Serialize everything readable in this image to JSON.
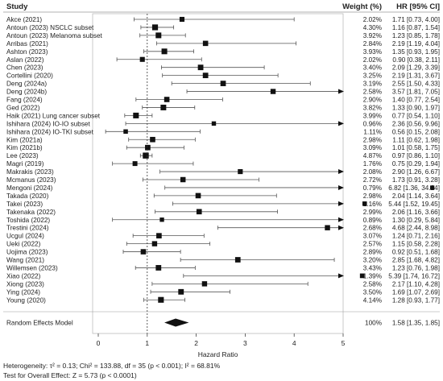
{
  "chart_data": {
    "type": "forest",
    "headers": {
      "study": "Study",
      "weight": "Weight (%)",
      "hr": "HR [95% CI]"
    },
    "studies": [
      {
        "name": "Akce (2021)",
        "weight": "2.02%",
        "hr_text": "1.71 [0.73, 4.00]",
        "hr": 1.71,
        "lo": 0.73,
        "hi": 4.0
      },
      {
        "name": "Antoun (2023) NSCLC subset",
        "weight": "4.30%",
        "hr_text": "1.16 [0.87, 1.54]",
        "hr": 1.16,
        "lo": 0.87,
        "hi": 1.54
      },
      {
        "name": "Antoun (2023) Melanoma subset",
        "weight": "3.92%",
        "hr_text": "1.23 [0.85, 1.78]",
        "hr": 1.23,
        "lo": 0.85,
        "hi": 1.78
      },
      {
        "name": "Arribas (2021)",
        "weight": "2.84%",
        "hr_text": "2.19 [1.19, 4.04]",
        "hr": 2.19,
        "lo": 1.19,
        "hi": 4.04
      },
      {
        "name": "Ashton (2023)",
        "weight": "3.93%",
        "hr_text": "1.35 [0.93, 1.95]",
        "hr": 1.35,
        "lo": 0.93,
        "hi": 1.95
      },
      {
        "name": "Aslan (2022)",
        "weight": "2.02%",
        "hr_text": "0.90 [0.38, 2.11]",
        "hr": 0.9,
        "lo": 0.38,
        "hi": 2.11
      },
      {
        "name": "Chen (2023)",
        "weight": "3.40%",
        "hr_text": "2.09 [1.29, 3.39]",
        "hr": 2.09,
        "lo": 1.29,
        "hi": 3.39
      },
      {
        "name": "Cortellini (2020)",
        "weight": "3.25%",
        "hr_text": "2.19 [1.31, 3.67]",
        "hr": 2.19,
        "lo": 1.31,
        "hi": 3.67
      },
      {
        "name": "Deng (2024a)",
        "weight": "3.19%",
        "hr_text": "2.55 [1.50, 4.33]",
        "hr": 2.55,
        "lo": 1.5,
        "hi": 4.33
      },
      {
        "name": "Deng (2024b)",
        "weight": "2.58%",
        "hr_text": "3.57 [1.81, 7.05]",
        "hr": 3.57,
        "lo": 1.81,
        "hi": 7.05
      },
      {
        "name": "Fang (2024)",
        "weight": "2.90%",
        "hr_text": "1.40 [0.77, 2.54]",
        "hr": 1.4,
        "lo": 0.77,
        "hi": 2.54
      },
      {
        "name": "Ged (2022)",
        "weight": "3.82%",
        "hr_text": "1.33 [0.90, 1.97]",
        "hr": 1.33,
        "lo": 0.9,
        "hi": 1.97
      },
      {
        "name": "Haik (2021) Lung cancer subset",
        "weight": "3.99%",
        "hr_text": "0.77 [0.54, 1.10]",
        "hr": 0.77,
        "lo": 0.54,
        "hi": 1.1
      },
      {
        "name": "Ishihara (2024) IO-IO subset",
        "weight": "0.96%",
        "hr_text": "2.36 [0.56, 9.96]",
        "hr": 2.36,
        "lo": 0.56,
        "hi": 9.96
      },
      {
        "name": "Ishihara (2024) IO-TKI subset",
        "weight": "1.11%",
        "hr_text": "0.56 [0.15, 2.08]",
        "hr": 0.56,
        "lo": 0.15,
        "hi": 2.08
      },
      {
        "name": "Kim (2021a)",
        "weight": "2.98%",
        "hr_text": "1.11 [0.62, 1.98]",
        "hr": 1.11,
        "lo": 0.62,
        "hi": 1.98
      },
      {
        "name": "Kim (2021b)",
        "weight": "3.09%",
        "hr_text": "1.01 [0.58, 1.75]",
        "hr": 1.01,
        "lo": 0.58,
        "hi": 1.75
      },
      {
        "name": "Lee (2023)",
        "weight": "4.87%",
        "hr_text": "0.97 [0.86, 1.10]",
        "hr": 0.97,
        "lo": 0.86,
        "hi": 1.1
      },
      {
        "name": "Magri (2019)",
        "weight": "1.76%",
        "hr_text": "0.75 [0.29, 1.94]",
        "hr": 0.75,
        "lo": 0.29,
        "hi": 1.94
      },
      {
        "name": "Makrakis (2023)",
        "weight": "2.08%",
        "hr_text": "2.90 [1.26, 6.67]",
        "hr": 2.9,
        "lo": 1.26,
        "hi": 6.67
      },
      {
        "name": "Mcmanus (2023)",
        "weight": "2.72%",
        "hr_text": "1.73 [0.91, 3.28]",
        "hr": 1.73,
        "lo": 0.91,
        "hi": 3.28
      },
      {
        "name": "Mengoni (2024)",
        "weight": "0.79%",
        "hr_text": "6.82 [1.36, 34.24]",
        "hr": 6.82,
        "lo": 1.36,
        "hi": 34.24
      },
      {
        "name": "Takada (2020)",
        "weight": "2.98%",
        "hr_text": "2.04 [1.14, 3.64]",
        "hr": 2.04,
        "lo": 1.14,
        "hi": 3.64
      },
      {
        "name": "Takei (2023)",
        "weight": "1.16%",
        "hr_text": "5.44 [1.52, 19.45]",
        "hr": 5.44,
        "lo": 1.52,
        "hi": 19.45
      },
      {
        "name": "Takenaka (2022)",
        "weight": "2.99%",
        "hr_text": "2.06 [1.16, 3.66]",
        "hr": 2.06,
        "lo": 1.16,
        "hi": 3.66
      },
      {
        "name": "Toshida (2022)",
        "weight": "0.89%",
        "hr_text": "1.30 [0.29, 5.84]",
        "hr": 1.3,
        "lo": 0.29,
        "hi": 5.84
      },
      {
        "name": "Trestini (2024)",
        "weight": "2.68%",
        "hr_text": "4.68 [2.44, 8.98]",
        "hr": 4.68,
        "lo": 2.44,
        "hi": 8.98
      },
      {
        "name": "Ucgul (2024)",
        "weight": "3.07%",
        "hr_text": "1.24 [0.71, 2.16]",
        "hr": 1.24,
        "lo": 0.71,
        "hi": 2.16
      },
      {
        "name": "Ueki (2022)",
        "weight": "2.57%",
        "hr_text": "1.15 [0.58, 2.28]",
        "hr": 1.15,
        "lo": 0.58,
        "hi": 2.28
      },
      {
        "name": "Uojima (2023)",
        "weight": "2.89%",
        "hr_text": "0.92 [0.51, 1.68]",
        "hr": 0.92,
        "lo": 0.51,
        "hi": 1.68
      },
      {
        "name": "Wang (2021)",
        "weight": "3.20%",
        "hr_text": "2.85 [1.68, 4.82]",
        "hr": 2.85,
        "lo": 1.68,
        "hi": 4.82
      },
      {
        "name": "Willemsen (2023)",
        "weight": "3.43%",
        "hr_text": "1.23 [0.76, 1.98]",
        "hr": 1.23,
        "lo": 0.76,
        "hi": 1.98
      },
      {
        "name": "Xiao (2022)",
        "weight": "1.39%",
        "hr_text": "5.39 [1.74, 16.72]",
        "hr": 5.39,
        "lo": 1.74,
        "hi": 16.72
      },
      {
        "name": "Xiong (2023)",
        "weight": "2.58%",
        "hr_text": "2.17 [1.10, 4.28]",
        "hr": 2.17,
        "lo": 1.1,
        "hi": 4.28
      },
      {
        "name": "Ying (2024)",
        "weight": "3.50%",
        "hr_text": "1.69 [1.07, 2.69]",
        "hr": 1.69,
        "lo": 1.07,
        "hi": 2.69
      },
      {
        "name": "Young (2020)",
        "weight": "4.14%",
        "hr_text": "1.28 [0.93, 1.77]",
        "hr": 1.28,
        "lo": 0.93,
        "hi": 1.77
      }
    ],
    "summary": {
      "name": "Random Effects Model",
      "weight": "100%",
      "hr_text": "1.58 [1.35, 1.85]",
      "hr": 1.58,
      "lo": 1.35,
      "hi": 1.85
    },
    "x_axis": {
      "label": "Hazard Ratio",
      "ticks": [
        0,
        1,
        2,
        3,
        4,
        5
      ],
      "range": [
        0,
        5
      ],
      "reference_line": 1
    },
    "footer": {
      "heterogeneity": "Heterogeneity: τ² = 0.13; Chi² = 133.88, df = 35 (p < 0.001); I² = 68.81%",
      "overall_effect": "Test for Overall Effect: Z = 5.73 (p < 0.0001)"
    },
    "colors": {
      "marker": "#111111",
      "line": "#555555",
      "frame": "#bbbbbb"
    }
  }
}
